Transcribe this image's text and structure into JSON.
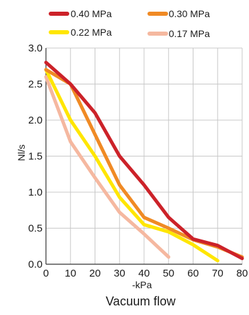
{
  "chart_data": {
    "type": "line",
    "title": "Vacuum flow",
    "xlabel": "-kPa",
    "ylabel": "Nl/s",
    "xlim": [
      0,
      80
    ],
    "ylim": [
      0,
      3.0
    ],
    "x_ticks": [
      "0",
      "10",
      "20",
      "30",
      "40",
      "50",
      "60",
      "70",
      "80"
    ],
    "y_ticks": [
      "0.0",
      "0.5",
      "1.0",
      "1.5",
      "2.0",
      "2.5",
      "3.0"
    ],
    "grid": true,
    "legend_position": "top",
    "series": [
      {
        "name": "0.40 MPa",
        "color": "#cc2229",
        "x": [
          0,
          10,
          20,
          30,
          40,
          50,
          60,
          70,
          80
        ],
        "y": [
          2.8,
          2.5,
          2.1,
          1.5,
          1.1,
          0.65,
          0.35,
          0.26,
          0.08
        ]
      },
      {
        "name": "0.30 MPa",
        "color": "#f08a24",
        "x": [
          0,
          10,
          20,
          30,
          40,
          50,
          60,
          70,
          80
        ],
        "y": [
          2.7,
          2.5,
          1.8,
          1.1,
          0.65,
          0.5,
          0.34,
          0.24,
          0.1
        ]
      },
      {
        "name": "0.22 MPa",
        "color": "#ffe600",
        "x": [
          0,
          10,
          20,
          30,
          40,
          50,
          60,
          70
        ],
        "y": [
          2.7,
          2.0,
          1.5,
          0.93,
          0.55,
          0.45,
          0.27,
          0.05
        ]
      },
      {
        "name": "0.17 MPa",
        "color": "#f5b8a0",
        "x": [
          0,
          10,
          20,
          30,
          40,
          50
        ],
        "y": [
          2.6,
          1.7,
          1.2,
          0.72,
          0.42,
          0.1
        ]
      }
    ]
  }
}
